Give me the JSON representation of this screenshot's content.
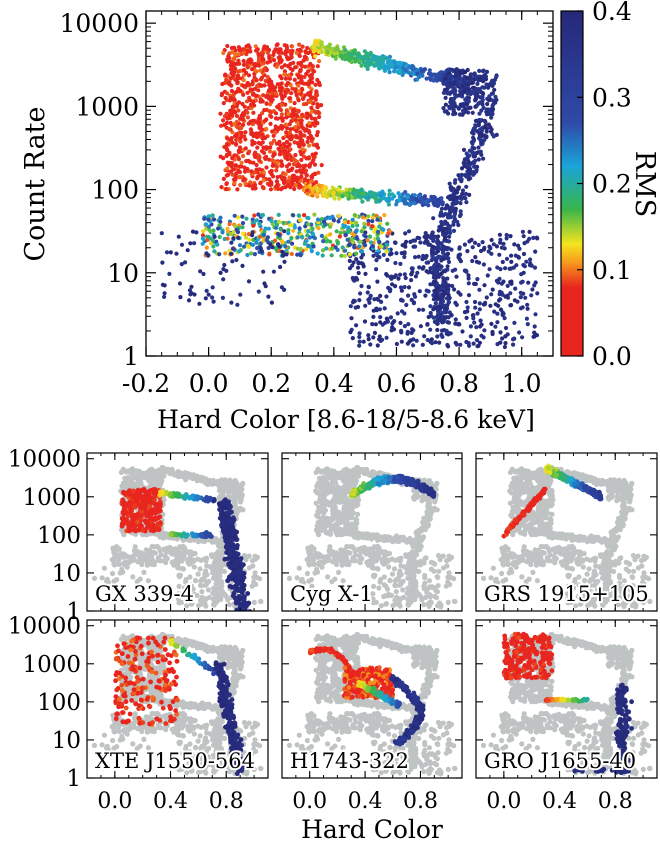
{
  "chart_data": [
    {
      "id": "main",
      "type": "scatter",
      "title": "",
      "xlabel": "Hard Color   [8.6-18/5-8.6 keV]",
      "ylabel": "Count Rate",
      "xlim": [
        -0.2,
        1.1
      ],
      "ylim": [
        1,
        14000
      ],
      "yscale": "log",
      "xticks": [
        "-0.2",
        "0.0",
        "0.2",
        "0.4",
        "0.6",
        "0.8",
        "1.0"
      ],
      "yticks": [
        "1",
        "10",
        "100",
        "1000",
        "10000"
      ],
      "colorbar": {
        "label": "RMS",
        "range": [
          0.0,
          0.4
        ],
        "ticks": [
          "0.0",
          "0.1",
          "0.2",
          "0.3",
          "0.4"
        ]
      },
      "regions": [
        {
          "note": "soft red branch",
          "x": [
            0.04,
            0.36
          ],
          "y": [
            100,
            6000
          ],
          "rms": 0.08
        },
        {
          "note": "top green-cyan band",
          "x": [
            0.35,
            0.8
          ],
          "y": [
            800,
            6000
          ],
          "rms": 0.22
        },
        {
          "note": "hard blue knee",
          "x": [
            0.8,
            0.92
          ],
          "y": [
            500,
            2500
          ],
          "rms": 0.38
        },
        {
          "note": "hard blue descending",
          "x": [
            0.65,
            1.05
          ],
          "y": [
            1,
            200
          ],
          "rms": 0.39
        },
        {
          "note": "low mixed band",
          "x": [
            0.0,
            0.55
          ],
          "y": [
            10,
            50
          ],
          "rms": 0.18
        }
      ]
    },
    {
      "id": "gx339",
      "type": "scatter",
      "label": "GX 339-4"
    },
    {
      "id": "cygx1",
      "type": "scatter",
      "label": "Cyg X-1"
    },
    {
      "id": "grs1915",
      "type": "scatter",
      "label": "GRS 1915+105"
    },
    {
      "id": "xte1550",
      "type": "scatter",
      "label": "XTE J1550-564"
    },
    {
      "id": "h1743",
      "type": "scatter",
      "label": "H1743-322"
    },
    {
      "id": "gro1655",
      "type": "scatter",
      "label": "GRO J1655-40"
    }
  ],
  "small_panels": {
    "xticks": [
      "0.0",
      "0.4",
      "0.8"
    ],
    "yticks": [
      "1",
      "10",
      "100",
      "1000",
      "10000"
    ],
    "xlabel": "Hard Color"
  },
  "colors": {
    "background_points": "#bfc3c3",
    "colormap": [
      "#e53030",
      "#e81e1e",
      "#f08a1e",
      "#f5e21a",
      "#3fbf3f",
      "#1ea0d8",
      "#2a3fa8",
      "#24277e"
    ]
  }
}
